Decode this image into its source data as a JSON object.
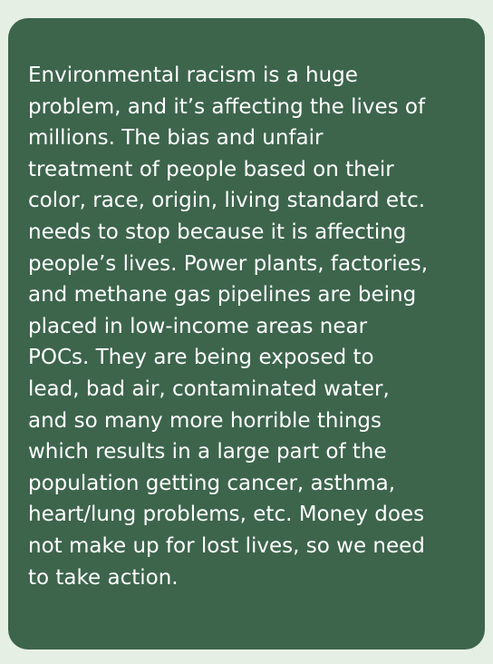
{
  "card": {
    "text": "Environmental racism is a huge\nproblem, and it’s affecting the lives of\nmillions. The bias and unfair\ntreatment of people based on their\ncolor, race, origin, living standard etc.\nneeds to stop because it is affecting\npeople’s lives. Power plants, factories,\nand methane gas pipelines are being\nplaced in low-income areas near\nPOCs. They are being exposed to\nlead, bad air, contaminated water,\nand so many more horrible things\nwhich results in a large part of the\npopulation getting cancer, asthma,\nheart/lung problems, etc. Money does\nnot make up for lost lives, so we need\nto take action."
  },
  "colors": {
    "page_background": "#e6efe4",
    "card_background": "#3d654c",
    "text": "#ffffff"
  }
}
